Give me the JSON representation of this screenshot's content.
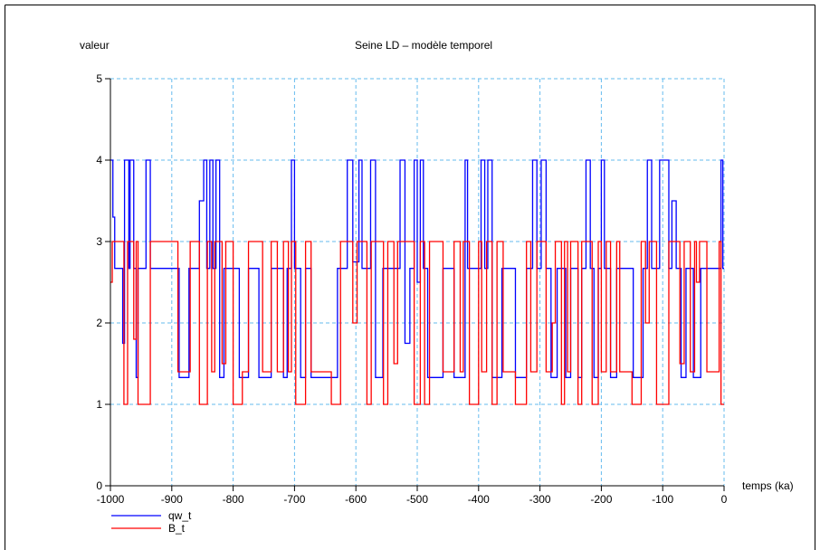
{
  "chart_data": {
    "type": "line",
    "step": true,
    "title": "Seine LD – modèle temporel",
    "y_label": "valeur",
    "x_label": "temps (ka)",
    "xlim": [
      -1000,
      0
    ],
    "ylim": [
      0,
      5
    ],
    "xticks": [
      -1000,
      -900,
      -800,
      -700,
      -600,
      -500,
      -400,
      -300,
      -200,
      -100,
      0
    ],
    "yticks": [
      0,
      1,
      2,
      3,
      4,
      5
    ],
    "grid": true,
    "legend": "bottom-left",
    "series": [
      {
        "name": "qw_t",
        "color": "#0000ff",
        "x": [
          -1000,
          -996,
          -993,
          -980,
          -977,
          -970,
          -968,
          -962,
          -958,
          -955,
          -942,
          -935,
          -890,
          -888,
          -872,
          -872,
          -858,
          -855,
          -848,
          -843,
          -838,
          -833,
          -828,
          -822,
          -815,
          -800,
          -790,
          -775,
          -775,
          -760,
          -758,
          -740,
          -738,
          -720,
          -718,
          -712,
          -705,
          -700,
          -690,
          -682,
          -675,
          -673,
          -630,
          -630,
          -618,
          -614,
          -605,
          -595,
          -590,
          -580,
          -576,
          -568,
          -560,
          -556,
          -532,
          -528,
          -520,
          -512,
          -505,
          -500,
          -495,
          -490,
          -483,
          -460,
          -458,
          -445,
          -440,
          -430,
          -422,
          -418,
          -400,
          -396,
          -390,
          -385,
          -378,
          -368,
          -362,
          -345,
          -340,
          -325,
          -322,
          -312,
          -305,
          -298,
          -290,
          -282,
          -272,
          -262,
          -258,
          -250,
          -240,
          -238,
          -232,
          -225,
          -218,
          -212,
          -205,
          -200,
          -195,
          -185,
          -175,
          -150,
          -148,
          -135,
          -132,
          -125,
          -118,
          -108,
          -105,
          -95,
          -90,
          -85,
          -78,
          -70,
          -62,
          -55,
          -50,
          -40,
          -38,
          -8,
          -5,
          -2,
          0
        ],
        "values": [
          4,
          3.3,
          2.67,
          1.75,
          4,
          2.67,
          4,
          2.67,
          1.33,
          2.67,
          4,
          2.67,
          2.67,
          1.33,
          1.33,
          2.67,
          2.67,
          3.5,
          4,
          2.67,
          4,
          2.67,
          4,
          1.33,
          2.67,
          2.67,
          1.33,
          1.33,
          2.67,
          2.67,
          1.33,
          1.33,
          2.67,
          2.67,
          1.33,
          2.67,
          4,
          2.67,
          1.33,
          2.67,
          2.67,
          1.33,
          1.33,
          2.67,
          2.67,
          4,
          2.75,
          4,
          2.67,
          2.67,
          4,
          1.33,
          1.33,
          2.67,
          2.67,
          4,
          1.75,
          2.67,
          4,
          2.5,
          4,
          2.67,
          1.33,
          1.33,
          2.67,
          2.67,
          1.33,
          1.33,
          4,
          2.67,
          2.67,
          4,
          2.67,
          4,
          1.33,
          1.33,
          2.67,
          2.67,
          1.33,
          1.33,
          2.67,
          4,
          2.67,
          4,
          2.67,
          1.33,
          2.67,
          2.67,
          1.33,
          2.67,
          2.67,
          1.33,
          2.67,
          4,
          2.67,
          1.33,
          2.67,
          4,
          2.67,
          1.33,
          2.67,
          2.67,
          1.33,
          1.33,
          2.67,
          4,
          2.67,
          2.67,
          4,
          4,
          2.67,
          3.5,
          2.67,
          1.33,
          2.67,
          2.67,
          1.33,
          1.33,
          2.67,
          2.67,
          4,
          2.67,
          2.67
        ]
      },
      {
        "name": "B_t",
        "color": "#ff0000",
        "x": [
          -1000,
          -997,
          -978,
          -972,
          -962,
          -958,
          -955,
          -935,
          -935,
          -890,
          -890,
          -870,
          -870,
          -855,
          -855,
          -842,
          -835,
          -830,
          -818,
          -812,
          -800,
          -800,
          -785,
          -785,
          -775,
          -775,
          -752,
          -752,
          -738,
          -738,
          -728,
          -728,
          -718,
          -718,
          -710,
          -705,
          -698,
          -682,
          -682,
          -673,
          -673,
          -640,
          -640,
          -630,
          -625,
          -610,
          -605,
          -598,
          -582,
          -575,
          -560,
          -555,
          -548,
          -538,
          -532,
          -510,
          -505,
          -495,
          -488,
          -480,
          -460,
          -458,
          -440,
          -440,
          -430,
          -425,
          -415,
          -415,
          -400,
          -400,
          -395,
          -387,
          -378,
          -378,
          -370,
          -370,
          -360,
          -360,
          -340,
          -340,
          -322,
          -322,
          -315,
          -305,
          -290,
          -290,
          -280,
          -275,
          -265,
          -260,
          -255,
          -250,
          -238,
          -232,
          -218,
          -215,
          -205,
          -200,
          -192,
          -185,
          -175,
          -175,
          -170,
          -150,
          -150,
          -135,
          -135,
          -128,
          -122,
          -110,
          -110,
          -90,
          -90,
          -75,
          -72,
          -65,
          -55,
          -48,
          -45,
          -40,
          -30,
          -28,
          -8,
          -8,
          -5,
          0
        ],
        "values": [
          2.5,
          3,
          1,
          3,
          1.8,
          3,
          1,
          1,
          3,
          3,
          1.4,
          1.4,
          3,
          3,
          1,
          3,
          1.4,
          3,
          1.5,
          3,
          3,
          1,
          1,
          1.4,
          1.4,
          3,
          3,
          1.4,
          1.4,
          3,
          3,
          1.4,
          1.4,
          3,
          1.4,
          3,
          1,
          1,
          3,
          3,
          1.4,
          1.4,
          1,
          1,
          3,
          3,
          2,
          3,
          1,
          3,
          3,
          1,
          3,
          1.5,
          3,
          3,
          1,
          3,
          1,
          3,
          3,
          1.4,
          1.4,
          3,
          1.4,
          3,
          3,
          1,
          1,
          3,
          1.4,
          3,
          3,
          1,
          1,
          3,
          3,
          1.4,
          1.4,
          1,
          1,
          3,
          1.4,
          3,
          3,
          1.4,
          2,
          3,
          1,
          3,
          1.4,
          3,
          1,
          3,
          3,
          1,
          3,
          1.4,
          3,
          1.4,
          1.4,
          3,
          1.4,
          1.4,
          1,
          1,
          3,
          2,
          3,
          3,
          1,
          1,
          3,
          3,
          1.5,
          3,
          1.4,
          3,
          2.5,
          3,
          3,
          1.4,
          1.4,
          3,
          1,
          1
        ]
      }
    ]
  }
}
